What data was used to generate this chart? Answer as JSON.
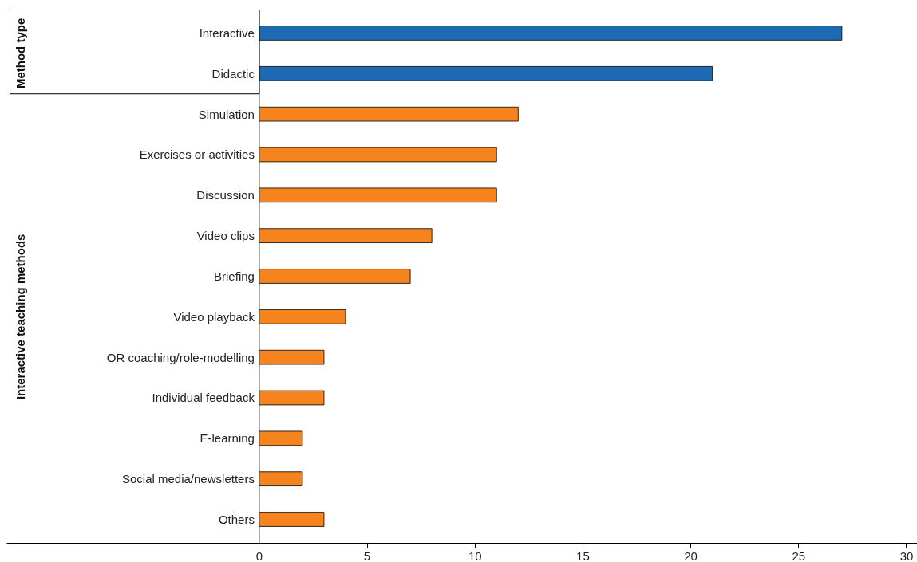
{
  "chart_data": {
    "type": "bar",
    "orientation": "horizontal",
    "categories": [
      "Interactive",
      "Didactic",
      "Simulation",
      "Exercises or activities",
      "Discussion",
      "Video clips",
      "Briefing",
      "Video playback",
      "OR coaching/role-modelling",
      "Individual feedback",
      "E-learning",
      "Social media/newsletters",
      "Others"
    ],
    "series": [
      {
        "color": "#1f6ab4",
        "values": [
          27,
          21,
          null,
          null,
          null,
          null,
          null,
          null,
          null,
          null,
          null,
          null,
          null
        ]
      },
      {
        "color": "#f5841f",
        "values": [
          null,
          null,
          12,
          11,
          11,
          8,
          7,
          4,
          3,
          3,
          2,
          2,
          3
        ]
      }
    ],
    "annotations": [
      "Method type",
      "Interactive teaching methods"
    ],
    "xlim": [
      -11.7,
      30.5
    ],
    "xticks": [
      0,
      5,
      10,
      15,
      20,
      25,
      30
    ],
    "grid": false
  }
}
